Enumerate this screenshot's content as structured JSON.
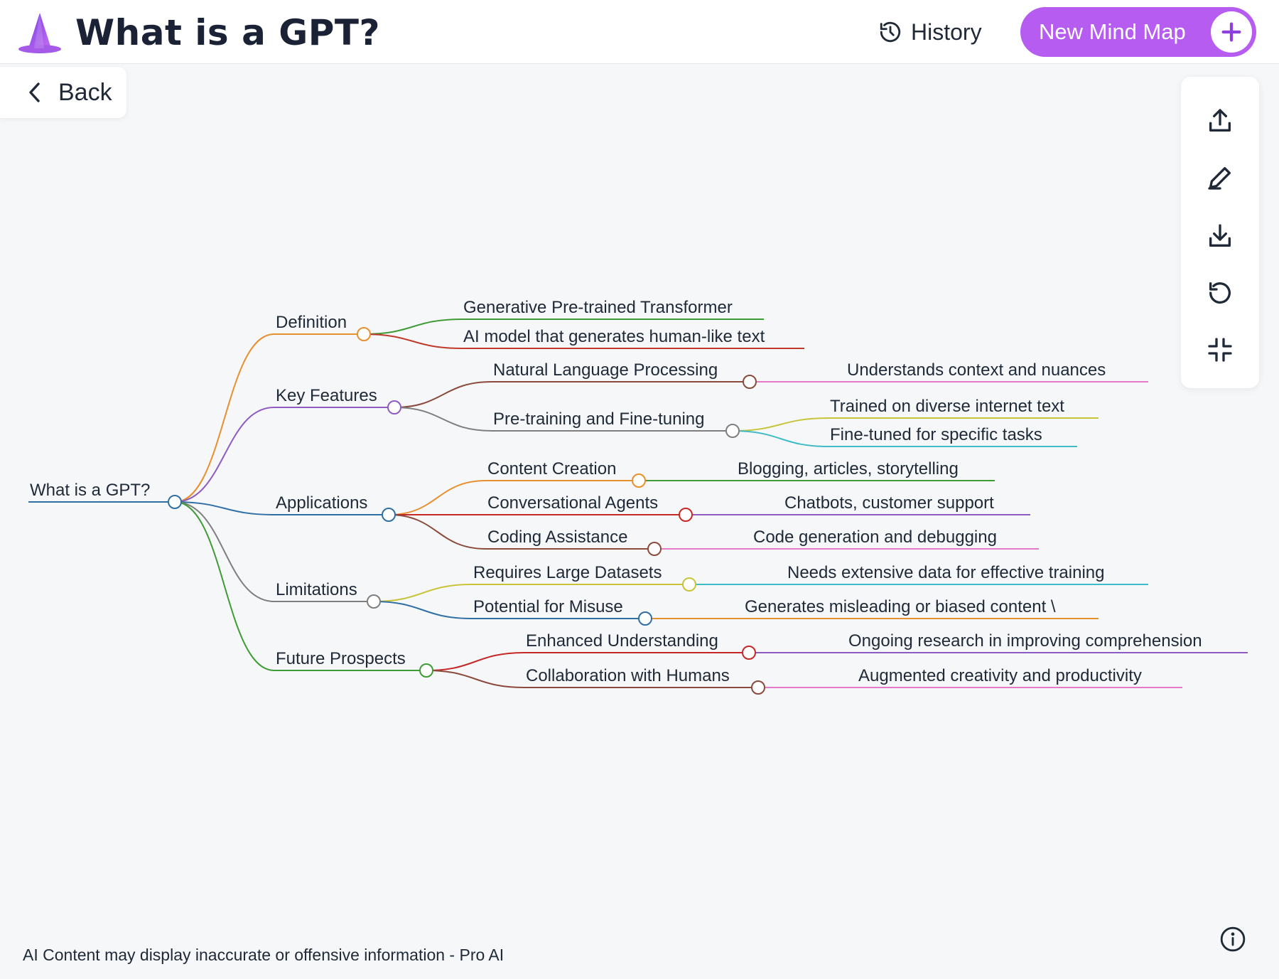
{
  "header": {
    "title": "What is a GPT?",
    "history_label": "History",
    "new_map_label": "New Mind Map",
    "brand_color": "#b75cf0"
  },
  "back_label": "Back",
  "toolbar": {
    "items": [
      "share-icon",
      "edit-icon",
      "download-icon",
      "reset-icon",
      "collapse-icon"
    ]
  },
  "mindmap": {
    "root": "What is a GPT?",
    "branches": [
      {
        "label": "Definition",
        "color": "#e7902f",
        "children": [
          {
            "label": "Generative Pre-trained Transformer",
            "color": "#3f9b35"
          },
          {
            "label": "AI model that generates human-like text",
            "color": "#c0392b"
          }
        ]
      },
      {
        "label": "Key Features",
        "color": "#8e5cc0",
        "children": [
          {
            "label": "Natural Language Processing",
            "color": "#8a4b3c",
            "children": [
              {
                "label": "Understands context and nuances",
                "color": "#e57ac8"
              }
            ]
          },
          {
            "label": "Pre-training and Fine-tuning",
            "color": "#7f7f7f",
            "children": [
              {
                "label": "Trained on diverse internet text",
                "color": "#c8c43a"
              },
              {
                "label": "Fine-tuned for specific tasks",
                "color": "#3fbcc8"
              }
            ]
          }
        ]
      },
      {
        "label": "Applications",
        "color": "#2f6fa3",
        "children": [
          {
            "label": "Content Creation",
            "color": "#e7902f",
            "children": [
              {
                "label": "Blogging, articles, storytelling",
                "color": "#3f9b35"
              }
            ]
          },
          {
            "label": "Conversational Agents",
            "color": "#c62828",
            "children": [
              {
                "label": "Chatbots, customer support",
                "color": "#8e5cc0"
              }
            ]
          },
          {
            "label": "Coding Assistance",
            "color": "#8a4b3c",
            "children": [
              {
                "label": "Code generation and debugging",
                "color": "#e57ac8"
              }
            ]
          }
        ]
      },
      {
        "label": "Limitations",
        "color": "#7f7f7f",
        "children": [
          {
            "label": "Requires Large Datasets",
            "color": "#c8c43a",
            "children": [
              {
                "label": "Needs extensive data for effective training",
                "color": "#3fbcc8"
              }
            ]
          },
          {
            "label": "Potential for Misuse",
            "color": "#2f6fa3",
            "children": [
              {
                "label": "Generates misleading or biased content \\",
                "color": "#e7902f"
              }
            ]
          }
        ]
      },
      {
        "label": "Future Prospects",
        "color": "#3f9b35",
        "children": [
          {
            "label": "Enhanced Understanding",
            "color": "#c62828",
            "children": [
              {
                "label": "Ongoing research in improving comprehension",
                "color": "#8e5cc0"
              }
            ]
          },
          {
            "label": "Collaboration with Humans",
            "color": "#8a4b3c",
            "children": [
              {
                "label": "Augmented creativity and productivity",
                "color": "#e57ac8"
              }
            ]
          }
        ]
      }
    ]
  },
  "footer_note": "AI Content may display inaccurate or offensive information - Pro AI"
}
